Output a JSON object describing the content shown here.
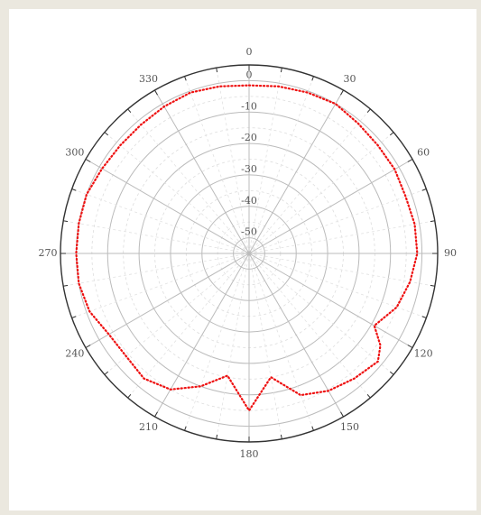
{
  "chart_data": {
    "type": "polar-line",
    "title": "",
    "angle_ticks": [
      "0",
      "30",
      "60",
      "90",
      "120",
      "150",
      "180",
      "210",
      "240",
      "270",
      "300",
      "330"
    ],
    "angle_tick_values": [
      0,
      30,
      60,
      90,
      120,
      150,
      180,
      210,
      240,
      270,
      300,
      330
    ],
    "radial_ticks": [
      "0",
      "-10",
      "-20",
      "-30",
      "-40",
      "-50"
    ],
    "radial_tick_values": [
      0,
      -10,
      -20,
      -30,
      -40,
      -50
    ],
    "rlim": [
      -55,
      5
    ],
    "grid": true,
    "series": [
      {
        "color": "#ee1111",
        "style": "dotted",
        "points": [
          [
            0,
            -1.5
          ],
          [
            10,
            -1.0
          ],
          [
            20,
            -0.5
          ],
          [
            30,
            0.0
          ],
          [
            40,
            -1.0
          ],
          [
            50,
            -1.5
          ],
          [
            60,
            -1.5
          ],
          [
            70,
            -2.0
          ],
          [
            80,
            -1.5
          ],
          [
            90,
            -1.5
          ],
          [
            100,
            -3.0
          ],
          [
            110,
            -5.0
          ],
          [
            120,
            -9.0
          ],
          [
            125,
            -4.0
          ],
          [
            130,
            -1.5
          ],
          [
            140,
            -3.0
          ],
          [
            150,
            -4.5
          ],
          [
            160,
            -7.0
          ],
          [
            170,
            -15.0
          ],
          [
            180,
            -5.0
          ],
          [
            190,
            -15.5
          ],
          [
            200,
            -10.0
          ],
          [
            210,
            -5.0
          ],
          [
            220,
            -3.0
          ],
          [
            230,
            -4.0
          ],
          [
            240,
            -3.5
          ],
          [
            250,
            -1.0
          ],
          [
            260,
            0.0
          ],
          [
            270,
            0.0
          ],
          [
            280,
            0.0
          ],
          [
            290,
            0.0
          ],
          [
            300,
            -1.0
          ],
          [
            310,
            -1.5
          ],
          [
            320,
            -1.5
          ],
          [
            330,
            -1.0
          ],
          [
            340,
            -0.5
          ],
          [
            350,
            -1.0
          ],
          [
            360,
            -1.5
          ]
        ]
      }
    ]
  }
}
